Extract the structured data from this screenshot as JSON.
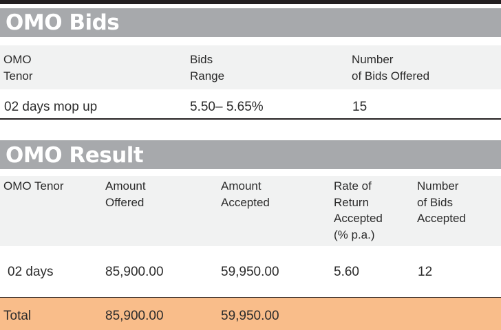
{
  "bids": {
    "title": "OMO Bids",
    "headers": [
      "OMO\nTenor",
      "Bids\nRange",
      "Number\nof Bids Offered"
    ],
    "rows": [
      [
        "02 days mop up",
        "5.50– 5.65%",
        "15"
      ]
    ]
  },
  "result": {
    "title": "OMO Result",
    "headers": [
      "OMO Tenor",
      "Amount\nOffered",
      "Amount\nAccepted",
      "Rate of\nReturn\nAccepted\n(% p.a.)",
      "Number\nof Bids\nAccepted"
    ],
    "rows": [
      [
        "02 days",
        "85,900.00",
        "59,950.00",
        "5.60",
        "12"
      ]
    ],
    "total": [
      "Total",
      "85,900.00",
      "59,950.00",
      "",
      ""
    ]
  },
  "colors": {
    "title_band": "#a7a9ac",
    "header_band": "#f1f2f2",
    "total_band": "#f9bd8a",
    "rule": "#231f20"
  }
}
